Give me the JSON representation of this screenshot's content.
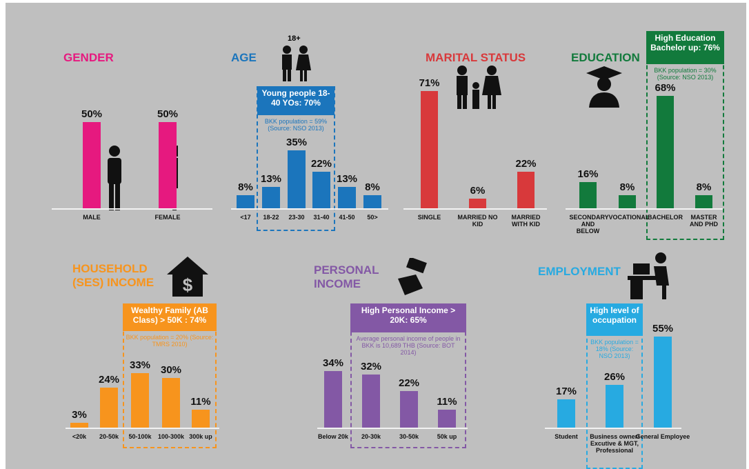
{
  "chart_data": [
    {
      "type": "bar",
      "title": "GENDER",
      "categories": [
        "MALE",
        "FEMALE"
      ],
      "values": [
        50,
        50
      ],
      "value_labels": [
        "50%",
        "50%"
      ],
      "color": "#e6197f"
    },
    {
      "type": "bar",
      "title": "AGE",
      "annotation": "18+",
      "categories": [
        "<17",
        "18-22",
        "23-30",
        "31-40",
        "41-50",
        "50>"
      ],
      "values": [
        8,
        13,
        35,
        22,
        13,
        8
      ],
      "value_labels": [
        "8%",
        "13%",
        "35%",
        "22%",
        "13%",
        "8%"
      ],
      "color": "#1b75bc",
      "callout": {
        "title": "Young people 18-40 YOs: 70%",
        "note": "BKK population = 59% (Source: NSO 2013)"
      }
    },
    {
      "type": "bar",
      "title": "MARITAL STATUS",
      "categories": [
        "SINGLE",
        "MARRIED NO KID",
        "MARRIED WITH KID"
      ],
      "values": [
        71,
        6,
        22
      ],
      "value_labels": [
        "71%",
        "6%",
        "22%"
      ],
      "color": "#d8393b"
    },
    {
      "type": "bar",
      "title": "EDUCATION",
      "categories": [
        "SECONDARY AND BELOW",
        "VOCATIONAL",
        "BACHELOR",
        "MASTER AND PHD"
      ],
      "values": [
        16,
        8,
        68,
        8
      ],
      "value_labels": [
        "16%",
        "8%",
        "68%",
        "8%"
      ],
      "color": "#127a3c",
      "callout": {
        "title": "High Education Bachelor up: 76%",
        "note": "BKK population = 30% (Source: NSO 2013)"
      }
    },
    {
      "type": "bar",
      "title": "HOUSEHOLD (SES) INCOME",
      "categories": [
        "<20k",
        "20-50k",
        "50-100k",
        "100-300k",
        "300k up"
      ],
      "values": [
        3,
        24,
        33,
        30,
        11
      ],
      "value_labels": [
        "3%",
        "24%",
        "33%",
        "30%",
        "11%"
      ],
      "color": "#f7941d",
      "callout": {
        "title": "Wealthy Family (AB Class) > 50K : 74%",
        "note": "BKK population = 20% (Source: TMRS 2010)"
      }
    },
    {
      "type": "bar",
      "title": "PERSONAL INCOME",
      "categories": [
        "Below 20k",
        "20-30k",
        "30-50k",
        "50k up"
      ],
      "values": [
        34,
        32,
        22,
        11
      ],
      "value_labels": [
        "34%",
        "32%",
        "22%",
        "11%"
      ],
      "color": "#8358a5",
      "callout": {
        "title": "High Personal Income > 20K: 65%",
        "note": "Average personal income of people in BKK is 10,689 THB (Source: BOT 2014)"
      }
    },
    {
      "type": "bar",
      "title": "EMPLOYMENT",
      "categories": [
        "Student",
        "Business owner/ Excutive & MGT, Professional",
        "General Employee"
      ],
      "values": [
        17,
        26,
        55
      ],
      "value_labels": [
        "17%",
        "26%",
        "55%"
      ],
      "color": "#27aae1",
      "callout": {
        "title": "High level of occupation",
        "note": "BKK population = 18% (Source: NSO 2013)"
      }
    }
  ]
}
